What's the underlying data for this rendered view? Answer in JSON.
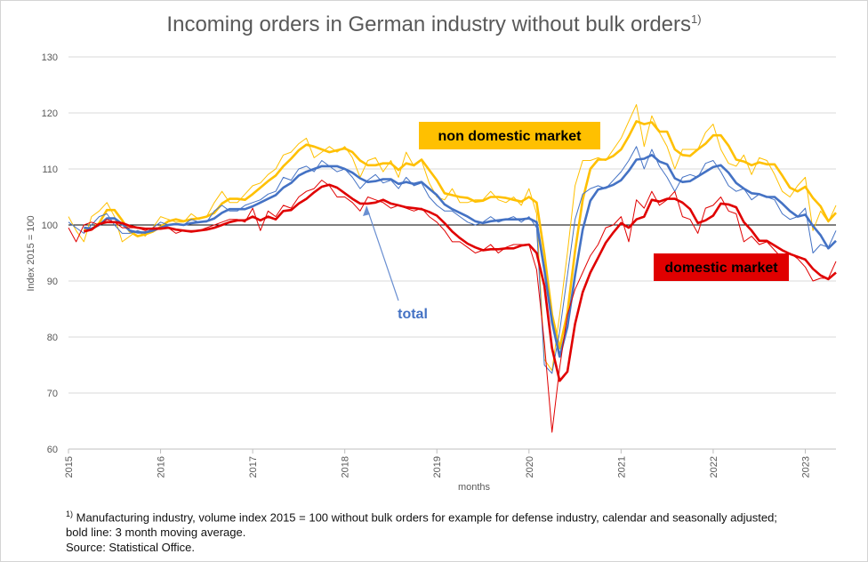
{
  "chart_data": {
    "type": "line",
    "title": "Incoming orders in German industry without bulk orders",
    "title_footnote_mark": "1)",
    "xlabel": "months",
    "ylabel": "Index 2015 = 100",
    "ylim": [
      60,
      130
    ],
    "yticks": [
      60,
      70,
      80,
      90,
      100,
      110,
      120,
      130
    ],
    "xlim": [
      "2015-01",
      "2023-05"
    ],
    "xticks": [
      "2015",
      "2016",
      "2017",
      "2018",
      "2019",
      "2020",
      "2021",
      "2022",
      "2023"
    ],
    "reference_line": 100,
    "grid": "horizontal",
    "x": [
      "2015-01",
      "2015-02",
      "2015-03",
      "2015-04",
      "2015-05",
      "2015-06",
      "2015-07",
      "2015-08",
      "2015-09",
      "2015-10",
      "2015-11",
      "2015-12",
      "2016-01",
      "2016-02",
      "2016-03",
      "2016-04",
      "2016-05",
      "2016-06",
      "2016-07",
      "2016-08",
      "2016-09",
      "2016-10",
      "2016-11",
      "2016-12",
      "2017-01",
      "2017-02",
      "2017-03",
      "2017-04",
      "2017-05",
      "2017-06",
      "2017-07",
      "2017-08",
      "2017-09",
      "2017-10",
      "2017-11",
      "2017-12",
      "2018-01",
      "2018-02",
      "2018-03",
      "2018-04",
      "2018-05",
      "2018-06",
      "2018-07",
      "2018-08",
      "2018-09",
      "2018-10",
      "2018-11",
      "2018-12",
      "2019-01",
      "2019-02",
      "2019-03",
      "2019-04",
      "2019-05",
      "2019-06",
      "2019-07",
      "2019-08",
      "2019-09",
      "2019-10",
      "2019-11",
      "2019-12",
      "2020-01",
      "2020-02",
      "2020-03",
      "2020-04",
      "2020-05",
      "2020-06",
      "2020-07",
      "2020-08",
      "2020-09",
      "2020-10",
      "2020-11",
      "2020-12",
      "2021-01",
      "2021-02",
      "2021-03",
      "2021-04",
      "2021-05",
      "2021-06",
      "2021-07",
      "2021-08",
      "2021-09",
      "2021-10",
      "2021-11",
      "2021-12",
      "2022-01",
      "2022-02",
      "2022-03",
      "2022-04",
      "2022-05",
      "2022-06",
      "2022-07",
      "2022-08",
      "2022-09",
      "2022-10",
      "2022-11",
      "2022-12",
      "2023-01",
      "2023-02",
      "2023-03",
      "2023-04",
      "2023-05"
    ],
    "series": [
      {
        "name": "non domestic market",
        "color": "#FFC000",
        "values": [
          101.5,
          99.0,
          97.0,
          101.5,
          102.5,
          104.0,
          101.5,
          97.0,
          98.0,
          99.0,
          98.0,
          99.5,
          101.5,
          101.0,
          100.5,
          100.5,
          102.0,
          101.0,
          101.5,
          104.0,
          106.0,
          104.0,
          104.0,
          105.5,
          107.0,
          107.5,
          109.0,
          110.0,
          112.5,
          113.0,
          114.5,
          115.5,
          112.0,
          113.0,
          114.0,
          113.0,
          114.0,
          112.0,
          108.5,
          111.5,
          112.0,
          109.5,
          111.5,
          108.5,
          113.0,
          110.5,
          111.5,
          107.5,
          105.0,
          104.5,
          106.5,
          104.0,
          104.0,
          104.5,
          104.5,
          106.0,
          104.5,
          104.0,
          105.0,
          103.5,
          106.5,
          102.0,
          76.0,
          74.0,
          84.0,
          95.0,
          107.0,
          111.5,
          111.5,
          112.0,
          111.5,
          113.5,
          115.5,
          118.5,
          121.5,
          114.0,
          119.5,
          116.5,
          114.0,
          110.0,
          113.5,
          113.5,
          113.5,
          116.5,
          118.0,
          113.5,
          111.0,
          110.5,
          112.5,
          109.0,
          112.0,
          111.5,
          109.0,
          106.0,
          105.0,
          107.0,
          108.5,
          99.0,
          102.5,
          100.5,
          103.5
        ]
      },
      {
        "name": "total",
        "color": "#4472C4",
        "values": [
          100.5,
          99.5,
          98.5,
          100.0,
          101.5,
          102.0,
          100.0,
          98.5,
          98.5,
          99.0,
          98.5,
          99.5,
          100.5,
          100.0,
          100.0,
          100.0,
          101.0,
          100.5,
          100.5,
          102.5,
          103.5,
          102.5,
          102.5,
          103.5,
          104.0,
          104.5,
          105.5,
          106.0,
          108.5,
          108.0,
          110.0,
          110.5,
          109.5,
          111.5,
          110.5,
          109.5,
          110.0,
          108.5,
          106.5,
          108.0,
          109.0,
          107.5,
          108.0,
          106.5,
          108.5,
          107.0,
          107.5,
          105.0,
          103.5,
          102.5,
          102.5,
          101.5,
          100.5,
          100.0,
          100.5,
          101.5,
          100.5,
          101.0,
          101.5,
          100.5,
          101.5,
          99.5,
          75.0,
          73.5,
          81.0,
          91.0,
          101.0,
          105.5,
          106.5,
          107.0,
          106.5,
          108.0,
          109.5,
          111.5,
          114.0,
          110.0,
          113.5,
          110.5,
          108.5,
          106.0,
          108.5,
          109.0,
          108.5,
          111.0,
          111.5,
          109.5,
          107.0,
          106.0,
          106.5,
          104.5,
          105.5,
          105.0,
          104.5,
          102.0,
          101.0,
          101.5,
          103.0,
          95.0,
          96.5,
          96.0,
          99.0
        ]
      },
      {
        "name": "domestic market",
        "color": "#E00000",
        "values": [
          99.5,
          97.0,
          100.0,
          100.5,
          100.0,
          101.0,
          100.5,
          99.5,
          99.5,
          99.5,
          99.0,
          99.5,
          99.5,
          99.5,
          98.5,
          99.0,
          99.0,
          99.0,
          99.5,
          100.0,
          100.5,
          101.0,
          101.0,
          100.5,
          103.0,
          99.0,
          102.5,
          101.5,
          103.5,
          103.0,
          105.0,
          106.0,
          106.5,
          108.0,
          107.0,
          105.0,
          105.0,
          104.0,
          102.5,
          105.0,
          104.5,
          104.0,
          103.0,
          103.5,
          103.0,
          102.5,
          103.0,
          101.5,
          100.5,
          99.0,
          97.0,
          97.0,
          96.0,
          95.0,
          95.5,
          96.5,
          95.0,
          96.0,
          96.5,
          96.5,
          96.5,
          92.0,
          79.0,
          63.0,
          74.5,
          84.0,
          88.5,
          91.5,
          94.5,
          96.5,
          99.5,
          100.0,
          101.5,
          97.0,
          104.5,
          103.0,
          106.0,
          103.5,
          104.5,
          106.0,
          101.5,
          101.0,
          98.5,
          103.0,
          103.5,
          105.0,
          102.5,
          102.0,
          97.0,
          98.0,
          96.5,
          97.0,
          95.5,
          94.0,
          95.0,
          94.0,
          92.5,
          90.0,
          90.5,
          90.5,
          93.5
        ]
      }
    ],
    "annotations": [
      {
        "text": "non domestic market",
        "series": "non domestic market"
      },
      {
        "text": "total",
        "series": "total"
      },
      {
        "text": "domestic market",
        "series": "domestic market"
      }
    ]
  },
  "footnote": {
    "mark": "1)",
    "line1": " Manufacturing industry, volume index 2015 = 100  without bulk orders for example for defense industry, calendar and seasonally adjusted;",
    "line2": "bold line: 3 month moving average.",
    "line3": "Source: Statistical Office."
  }
}
